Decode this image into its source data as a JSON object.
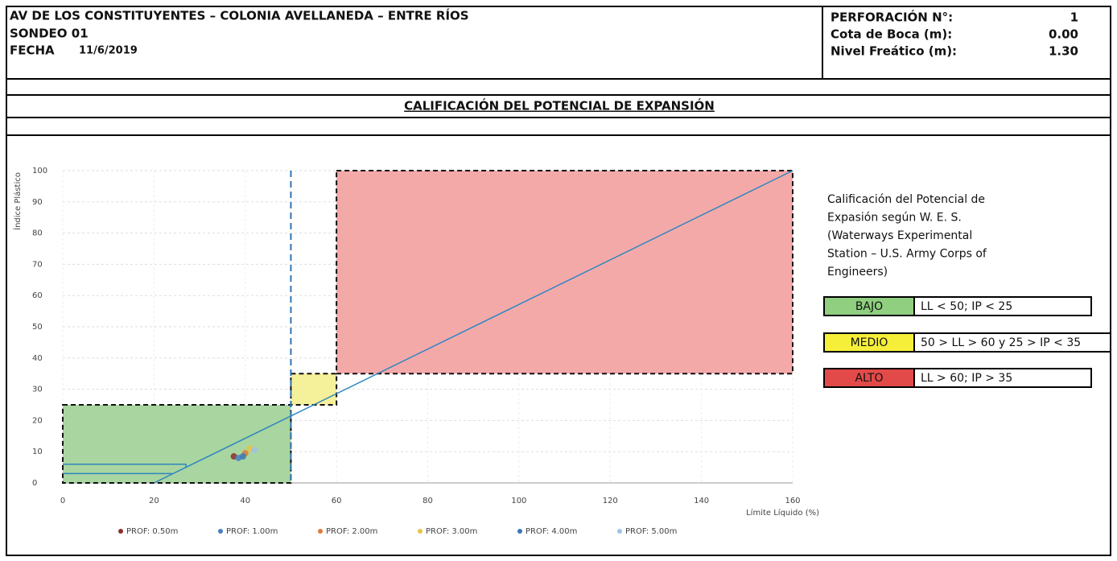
{
  "header": {
    "location": "AV DE LOS CONSTITUYENTES – COLONIA AVELLANEDA – ENTRE RÍOS",
    "sounding": "SONDEO 01",
    "date_label": "FECHA",
    "date": "11/6/2019",
    "fields": [
      {
        "label": "PERFORACIÓN N°:",
        "value": "1"
      },
      {
        "label": "Cota de Boca (m):",
        "value": "0.00"
      },
      {
        "label": "Nivel Freático (m):",
        "value": "1.30"
      }
    ]
  },
  "section_title": "CALIFICACIÓN DEL POTENCIAL DE EXPANSIÓN",
  "chart_data": {
    "type": "scatter",
    "x_label": "Límite Líquido (%)",
    "y_label": "Índice Plástico",
    "xlim": [
      0,
      160
    ],
    "ylim": [
      0,
      100
    ],
    "xticks": [
      0,
      20,
      40,
      60,
      80,
      100,
      120,
      140,
      160
    ],
    "yticks": [
      0,
      10,
      20,
      30,
      40,
      50,
      60,
      70,
      80,
      90,
      100
    ],
    "grid": true,
    "regions": [
      {
        "xlim": [
          0,
          50
        ],
        "ylim": [
          0,
          25
        ],
        "color": "#a9d5a0"
      },
      {
        "xlim": [
          50,
          60
        ],
        "ylim": [
          25,
          35
        ],
        "color": "#f5f09a"
      },
      {
        "xlim": [
          60,
          160
        ],
        "ylim": [
          35,
          100
        ],
        "color": "#f4a9a9"
      }
    ],
    "vertical_line": {
      "x": 50,
      "color": "#2e75b6"
    },
    "lines": [
      {
        "color": "#2e86c1",
        "x": [
          20,
          160
        ],
        "values": [
          0,
          100
        ]
      },
      {
        "color": "#2e86c1",
        "x": [
          0,
          27,
          27
        ],
        "values": [
          6,
          6,
          5
        ]
      },
      {
        "color": "#2e86c1",
        "x": [
          0,
          24,
          24
        ],
        "values": [
          3,
          3,
          3
        ]
      }
    ],
    "series": [
      {
        "name": "PROF: 0.50m",
        "color": "#8b2e2e",
        "x": [
          37.5
        ],
        "values": [
          8.5
        ]
      },
      {
        "name": "PROF: 1.00m",
        "color": "#4a7fc1",
        "x": [
          38.5
        ],
        "values": [
          8
        ]
      },
      {
        "name": "PROF: 2.00m",
        "color": "#e07a3a",
        "x": [
          40
        ],
        "values": [
          9.5
        ]
      },
      {
        "name": "PROF: 3.00m",
        "color": "#e8c440",
        "x": [
          41
        ],
        "values": [
          11
        ]
      },
      {
        "name": "PROF: 4.00m",
        "color": "#3a78b5",
        "x": [
          39.5
        ],
        "values": [
          8.5
        ]
      },
      {
        "name": "PROF: 5.00m",
        "color": "#9cc3e6",
        "x": [
          42
        ],
        "values": [
          10.5
        ]
      }
    ]
  },
  "legend_box": {
    "lines": [
      "Calificación del Potencial de",
      "Expasión según W.   E.   S.",
      "(Waterways Experimental",
      "Station – U.S. Army Corps of",
      "Engineers)"
    ],
    "rows": [
      {
        "label": "BAJO",
        "rule": "LL < 50;  IP < 25",
        "color": "#8fcf7f"
      },
      {
        "label": "MEDIO",
        "rule": "50 > LL > 60 y 25 > IP < 35",
        "color": "#f5ef3a"
      },
      {
        "label": "ALTO",
        "rule": "LL > 60; IP > 35",
        "color": "#e24a4a"
      }
    ]
  }
}
